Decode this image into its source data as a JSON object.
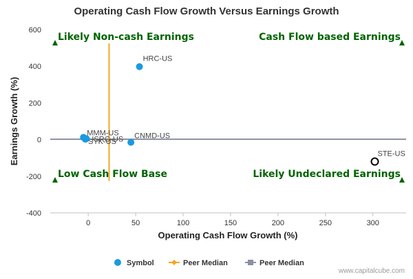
{
  "chart_data": {
    "type": "scatter",
    "title": "Operating Cash Flow Growth Versus Earnings Growth",
    "xlabel": "Operating Cash Flow Growth (%)",
    "ylabel": "Earnings Growth (%)",
    "xlim": [
      -40,
      335
    ],
    "ylim": [
      -400,
      600
    ],
    "x_ticks": [
      0,
      50,
      100,
      150,
      200,
      250,
      300
    ],
    "x_tick_labels": [
      "0",
      "50",
      "100",
      "150",
      "200",
      "250",
      "300"
    ],
    "y_ticks": [
      -400,
      -200,
      0,
      200,
      400,
      600
    ],
    "y_tick_labels": [
      "-400",
      "-200",
      "0",
      "200",
      "400",
      "600"
    ],
    "grid": false,
    "legend_position": "bottom",
    "series": [
      {
        "name": "Symbol",
        "color": "#1a9ae0",
        "points": [
          {
            "label": "HRC-US",
            "x": 54,
            "y": 398
          },
          {
            "label": "CNMD-US",
            "x": 45,
            "y": -15
          },
          {
            "label": "MMM-US",
            "x": -5,
            "y": 12
          },
          {
            "label": "SYK-US",
            "x": -3,
            "y": 2
          },
          {
            "label": "ISRG-US",
            "x": -2,
            "y": 5
          }
        ]
      },
      {
        "name": "Peer Median",
        "color": "#f5a623",
        "x_value": 22,
        "y_range": [
          -225,
          525
        ]
      },
      {
        "name": "Peer Median",
        "color": "#8c8fa3",
        "y_value": 2
      }
    ],
    "highlight": {
      "label": "STE-US",
      "x": 302,
      "y": -120
    },
    "quadrant_labels": {
      "top_left": "Likely Non-cash Earnings",
      "top_right": "Cash Flow based Earnings",
      "bottom_left": "Low Cash Flow Base",
      "bottom_right": "Likely Undeclared Earnings"
    },
    "quadrant_marker_color": "#006400",
    "credit": "www.capitalcube.com"
  }
}
